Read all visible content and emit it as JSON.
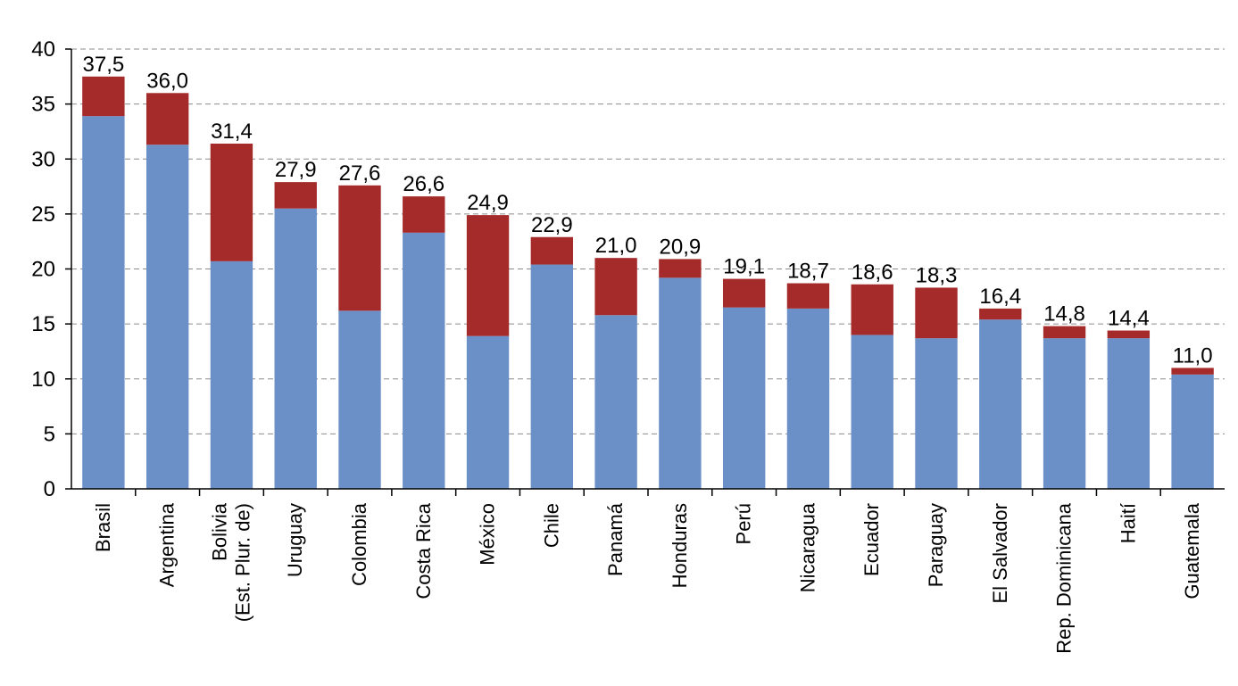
{
  "chart_data": {
    "type": "bar",
    "stacked": true,
    "categories": [
      [
        "Brasil"
      ],
      [
        "Argentina"
      ],
      [
        "Bolivia",
        "(Est. Plur. de)"
      ],
      [
        "Uruguay"
      ],
      [
        "Colombia"
      ],
      [
        "Costa Rica"
      ],
      [
        "México"
      ],
      [
        "Chile"
      ],
      [
        "Panamá"
      ],
      [
        "Honduras"
      ],
      [
        "Perú"
      ],
      [
        "Nicaragua"
      ],
      [
        "Ecuador"
      ],
      [
        "Paraguay"
      ],
      [
        "El Salvador"
      ],
      [
        "Rep. Dominicana"
      ],
      [
        "Haití"
      ],
      [
        "Guatemala"
      ]
    ],
    "series": [
      {
        "color": "#6b8fc7",
        "values": [
          33.9,
          31.3,
          20.7,
          25.5,
          16.2,
          23.3,
          13.9,
          20.4,
          15.8,
          19.2,
          16.5,
          16.4,
          14.0,
          13.7,
          15.4,
          13.7,
          13.7,
          10.4
        ]
      },
      {
        "color": "#a52a2a",
        "values": [
          3.6,
          4.7,
          10.7,
          2.4,
          11.4,
          3.3,
          11.0,
          2.5,
          5.2,
          1.7,
          2.6,
          2.3,
          4.6,
          4.6,
          1.0,
          1.1,
          0.7,
          0.6
        ]
      }
    ],
    "totals": [
      "37,5",
      "36,0",
      "31,4",
      "27,9",
      "27,6",
      "26,6",
      "24,9",
      "22,9",
      "21,0",
      "20,9",
      "19,1",
      "18,7",
      "18,6",
      "18,3",
      "16,4",
      "14,8",
      "14,4",
      "11,0"
    ],
    "yticks": [
      "0",
      "5",
      "10",
      "15",
      "20",
      "25",
      "30",
      "35",
      "40"
    ],
    "ylim": [
      0,
      40
    ],
    "grid": true,
    "title": "",
    "xlabel": "",
    "ylabel": ""
  }
}
